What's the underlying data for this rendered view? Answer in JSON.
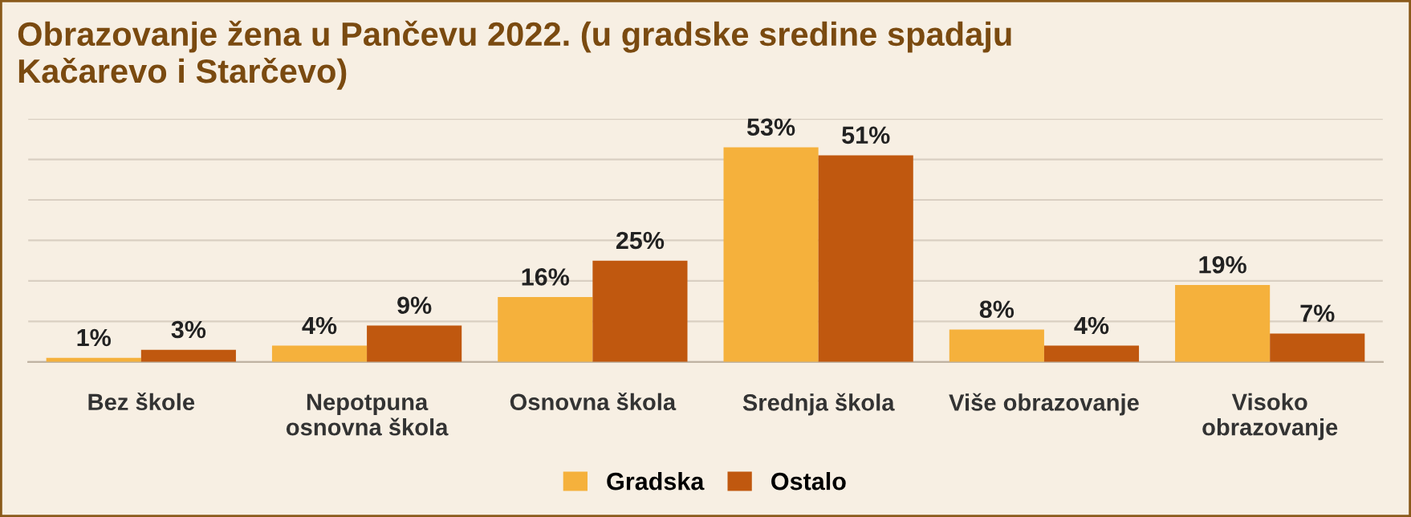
{
  "chart_data": {
    "type": "bar",
    "title": "Obrazovanje žena u Pančevu 2022. (u gradske sredine spadaju\nKačarevo i Starčevo)",
    "categories": [
      "Bez škole",
      "Nepotpuna\nosnovna škola",
      "Osnovna škola",
      "Srednja škola",
      "Više obrazovanje",
      "Visoko\nobrazovanje"
    ],
    "series": [
      {
        "name": "Gradska",
        "color": "#f5b13c",
        "values": [
          1,
          4,
          16,
          53,
          8,
          19
        ],
        "value_labels": [
          "1%",
          "4%",
          "16%",
          "53%",
          "8%",
          "19%"
        ]
      },
      {
        "name": "Ostalo",
        "color": "#c0580f",
        "values": [
          3,
          9,
          25,
          51,
          4,
          7
        ],
        "value_labels": [
          "3%",
          "9%",
          "25%",
          "51%",
          "4%",
          "7%"
        ]
      }
    ],
    "ylim": [
      0,
      60
    ],
    "yticks": [
      {
        "value": 0,
        "label": null
      },
      {
        "value": 10,
        "label": null
      },
      {
        "value": 20,
        "label": null
      },
      {
        "value": 30,
        "label": null
      },
      {
        "value": 40,
        "label": null
      },
      {
        "value": 50,
        "label": null
      },
      {
        "value": 60,
        "label": null
      }
    ],
    "grid": "y",
    "legend": "bottom"
  }
}
